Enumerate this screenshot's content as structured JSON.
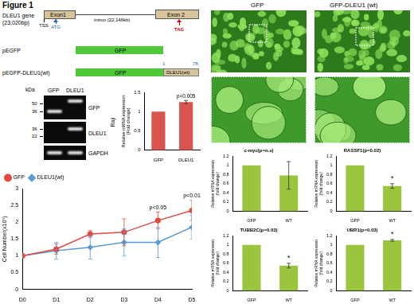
{
  "figure_title": "Figure 1",
  "gene_diagram": {
    "name": "DLEU1 gene",
    "length": "(23,020bp)",
    "exon1": "Exon1",
    "tss": "TSS",
    "start_codon": "ATG",
    "intron": "intron (22,146kb)",
    "exon2": "Exon 2",
    "stop_codon": "TAG"
  },
  "constructs": [
    {
      "name": "pEGFP",
      "segments": [
        "GFP"
      ]
    },
    {
      "name": "pEGFP-DLEU1(wt)",
      "segments": [
        "GFP",
        "DLEU1(wt)"
      ],
      "residue_start": 1,
      "residue_end": 78
    }
  ],
  "western_blot": {
    "unit": "kDa",
    "lanes": [
      "GFP",
      "DLEU1"
    ],
    "panels": [
      {
        "label": "GFP",
        "markers": [
          50,
          36
        ]
      },
      {
        "label": "DLEU1",
        "markers": [
          36,
          22
        ]
      },
      {
        "label": "GAPDH"
      }
    ]
  },
  "microscopy": {
    "columns": [
      "GFP",
      "GFP-DLEU1 (wt)"
    ]
  },
  "chart_data": [
    {
      "type": "bar",
      "title": "Raji",
      "categories": [
        "GFP",
        "DLEU1"
      ],
      "values": [
        1,
        1.25
      ],
      "errors": [
        0,
        0.04
      ],
      "color": "#d9534f",
      "ylabel": [
        "Relative mRNA expression",
        "(Fold change)"
      ],
      "ylim": [
        0,
        1.5
      ],
      "yticks": [
        0,
        0.5,
        1,
        1.5
      ],
      "grid": false,
      "annotations": [
        {
          "category": "DLEU1",
          "text": "p<0.005"
        }
      ]
    },
    {
      "type": "line",
      "categories": [
        "D0",
        "D1",
        "D2",
        "D3",
        "D4",
        "D5"
      ],
      "series": [
        {
          "name": "GFP",
          "color": "#e04a3f",
          "marker": "circle",
          "values": [
            1,
            1.2,
            1.65,
            1.7,
            2.05,
            2.35
          ],
          "errors": [
            0,
            0.15,
            0.1,
            0.4,
            0.25,
            0.3
          ]
        },
        {
          "name": "DLEU1(wt)",
          "color": "#5b9bd5",
          "marker": "diamond",
          "values": [
            1,
            1.15,
            1.25,
            1.4,
            1.4,
            1.85
          ],
          "errors": [
            0,
            0.25,
            0.35,
            0.4,
            0.45,
            0.35
          ]
        }
      ],
      "ylabel": "Cell Number(x10⁵)",
      "ylim": [
        0,
        3
      ],
      "yticks": [
        0,
        0.5,
        1,
        1.5,
        2,
        2.5,
        3
      ],
      "grid": false,
      "legend": "top-left",
      "annotations": [
        {
          "category": "D4",
          "text": "p<0.05"
        },
        {
          "category": "D5",
          "text": "p<0.01"
        }
      ]
    },
    {
      "type": "bar",
      "title": "c-myc(p=n.s)",
      "categories": [
        "GFP",
        "WT"
      ],
      "values": [
        1,
        0.78
      ],
      "errors": [
        0,
        0.3
      ],
      "color": "#9bc53d",
      "ylabel": [
        "Relative mRNA expression",
        "(fold change)"
      ],
      "ylim": [
        0,
        1.2
      ],
      "yticks": [
        0,
        0.2,
        0.4,
        0.6,
        0.8,
        1,
        1.2
      ],
      "grid": false
    },
    {
      "type": "bar",
      "title": "RASSF1(p=0.02)",
      "categories": [
        "GFP",
        "WT"
      ],
      "values": [
        1,
        0.55
      ],
      "errors": [
        0,
        0.05
      ],
      "color": "#9bc53d",
      "ylabel": [
        "Relative mRNA expression",
        "(fold change)"
      ],
      "ylim": [
        0,
        1.2
      ],
      "yticks": [
        0,
        0.2,
        0.4,
        0.6,
        0.8,
        1,
        1.2
      ],
      "grid": false,
      "annotations": [
        {
          "category": "WT",
          "text": "*"
        }
      ]
    },
    {
      "type": "bar",
      "title": "TUBB2C(p=0.03)",
      "categories": [
        "GFP",
        "WT"
      ],
      "values": [
        1,
        0.55
      ],
      "errors": [
        0,
        0.05
      ],
      "color": "#9bc53d",
      "ylabel": [
        "Relative mRNA expression",
        "(fold change)"
      ],
      "ylim": [
        0,
        1.2
      ],
      "yticks": [
        0,
        0.2,
        0.4,
        0.6,
        0.8,
        1,
        1.2
      ],
      "grid": false,
      "annotations": [
        {
          "category": "WT",
          "text": "*"
        }
      ]
    },
    {
      "type": "bar",
      "title": "UBR1(p=0.03)",
      "categories": [
        "GFP",
        "WT"
      ],
      "values": [
        1,
        1.1
      ],
      "errors": [
        0,
        0.02
      ],
      "color": "#9bc53d",
      "ylabel": [
        "Relative mRNA expression",
        "(fold change)"
      ],
      "ylim": [
        0,
        1.2
      ],
      "yticks": [
        0,
        0.2,
        0.4,
        0.6,
        0.8,
        1,
        1.2
      ],
      "grid": false,
      "annotations": [
        {
          "category": "WT",
          "text": "*"
        }
      ]
    }
  ]
}
